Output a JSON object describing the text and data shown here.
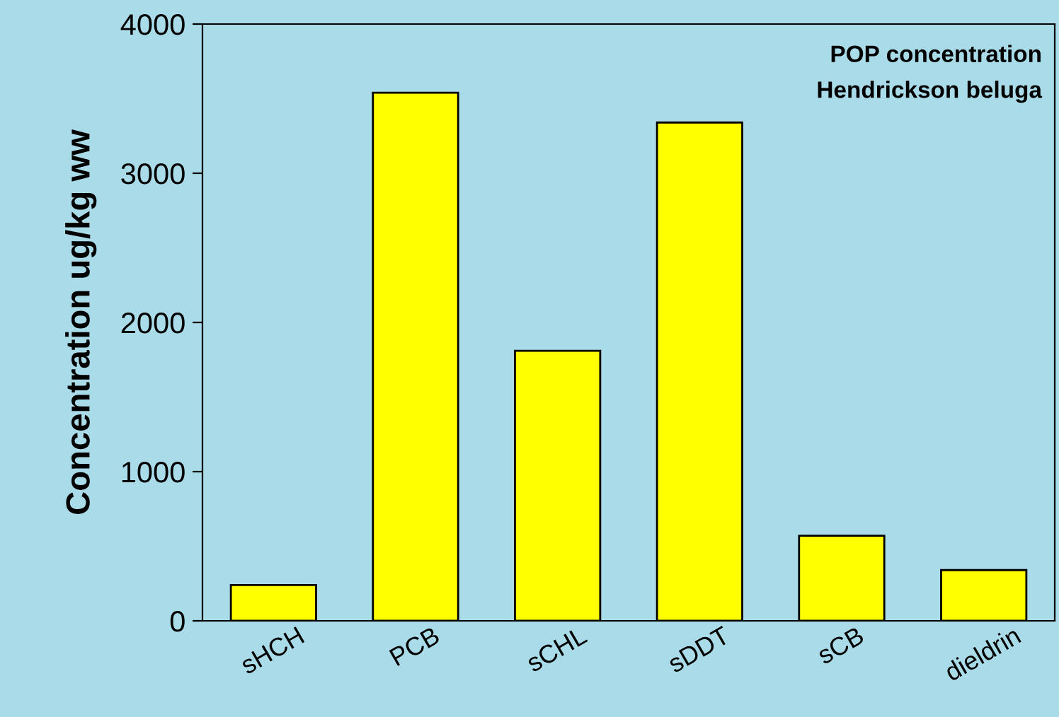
{
  "chart_data": {
    "type": "bar",
    "title": "POP concentration",
    "subtitle": "Hendrickson beluga",
    "ylabel": "Concentration ug/kg ww",
    "categories": [
      "sHCH",
      "PCB",
      "sCHL",
      "sDDT",
      "sCB",
      "dieldrin"
    ],
    "values": [
      240,
      3540,
      1810,
      3340,
      570,
      340
    ],
    "color": "#ffff00",
    "ylim": [
      0,
      4000
    ],
    "yticks": [
      0,
      1000,
      2000,
      3000,
      4000
    ],
    "grid": false,
    "legend": false
  }
}
